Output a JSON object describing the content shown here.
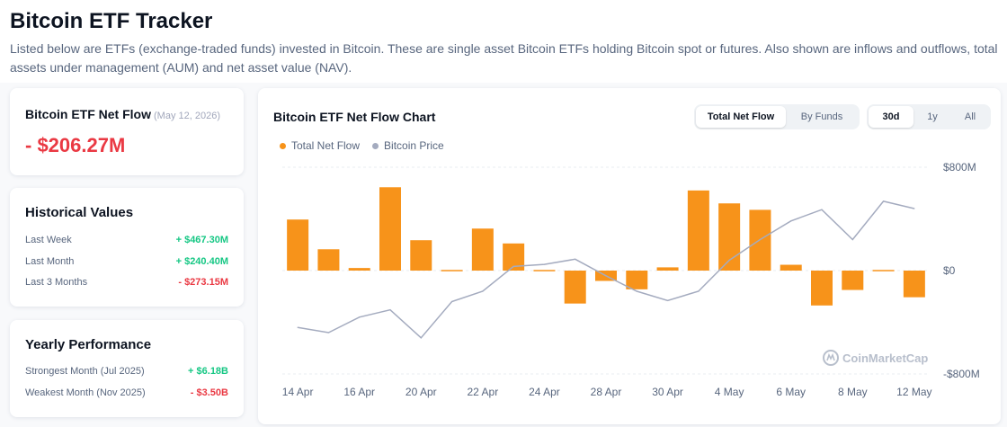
{
  "page": {
    "title": "Bitcoin ETF Tracker",
    "description": "Listed below are ETFs (exchange-traded funds) invested in Bitcoin. These are single asset Bitcoin ETFs holding Bitcoin spot or futures. Also shown are inflows and outflows, total assets under management (AUM) and net asset value (NAV)."
  },
  "net_flow": {
    "label": "Bitcoin ETF Net Flow",
    "date": "(May 12, 2026)",
    "value": "- $206.27M"
  },
  "historical": {
    "title": "Historical Values",
    "rows": [
      {
        "label": "Last Week",
        "value": "+ $467.30M"
      },
      {
        "label": "Last Month",
        "value": "+ $240.40M"
      },
      {
        "label": "Last 3 Months",
        "value": "- $273.15M"
      }
    ]
  },
  "yearly": {
    "title": "Yearly Performance",
    "rows": [
      {
        "label": "Strongest Month (Jul 2025)",
        "value": "+ $6.18B"
      },
      {
        "label": "Weakest Month (Nov 2025)",
        "value": "- $3.50B"
      }
    ]
  },
  "chart_card": {
    "title": "Bitcoin ETF Net Flow Chart",
    "view_tabs": {
      "total": "Total Net Flow",
      "by_funds": "By Funds"
    },
    "range_tabs": {
      "d30": "30d",
      "y1": "1y",
      "all": "All"
    },
    "watermark": "CoinMarketCap"
  },
  "colors": {
    "accent_positive": "#16c784",
    "accent_negative": "#ea3943",
    "bar": "#f7931a",
    "price_line": "#a4abbf"
  },
  "chart_data": {
    "type": "bar",
    "x": [
      "14 Apr",
      "15 Apr",
      "16 Apr",
      "17 Apr",
      "20 Apr",
      "21 Apr",
      "22 Apr",
      "23 Apr",
      "24 Apr",
      "27 Apr",
      "28 Apr",
      "29 Apr",
      "30 Apr",
      "1 May",
      "4 May",
      "5 May",
      "6 May",
      "7 May",
      "8 May",
      "11 May",
      "12 May"
    ],
    "x_tick_labels": [
      "14 Apr",
      "16 Apr",
      "20 Apr",
      "22 Apr",
      "24 Apr",
      "28 Apr",
      "30 Apr",
      "4 May",
      "6 May",
      "8 May",
      "12 May"
    ],
    "series": [
      {
        "name": "Total Net Flow",
        "values": [
          395,
          165,
          20,
          645,
          235,
          5,
          325,
          210,
          5,
          -255,
          -80,
          -145,
          25,
          620,
          520,
          470,
          45,
          -270,
          -150,
          5,
          -206.27
        ],
        "color": "#f7931a"
      },
      {
        "name": "Bitcoin Price",
        "values": [
          -0.55,
          -0.6,
          -0.45,
          -0.38,
          -0.65,
          -0.3,
          -0.2,
          0.04,
          0.06,
          0.11,
          -0.05,
          -0.2,
          -0.29,
          -0.2,
          0.1,
          0.3,
          0.48,
          0.59,
          0.3,
          0.67,
          0.6
        ],
        "color": "#a4abbf",
        "note_scale": "relative to $0 gridline on shared axis"
      }
    ],
    "ylabel_ticks": [
      "$800M",
      "$0",
      "-$800M"
    ],
    "ylim": [
      -800,
      800
    ],
    "grid": true,
    "legend": "top-left"
  }
}
